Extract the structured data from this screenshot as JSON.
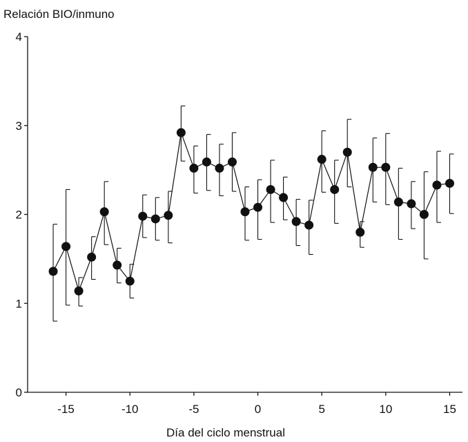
{
  "chart_data": {
    "type": "scatter",
    "title": "",
    "xlabel": "Día del ciclo menstrual",
    "ylabel": "Relación BIO/inmuno",
    "xlim": [
      -18,
      16
    ],
    "ylim": [
      0,
      4
    ],
    "x_ticks": [
      -15,
      -10,
      -5,
      0,
      5,
      10,
      15
    ],
    "y_ticks": [
      0,
      1,
      2,
      3,
      4
    ],
    "grid": false,
    "legend": "none",
    "color": "#111111",
    "series": [
      {
        "connected": true,
        "error_bars": "one-sided whiskers (upper above, lower below, alternating)",
        "points": [
          {
            "x": -16,
            "y": 1.36,
            "lo": 0.8,
            "hi": 1.89
          },
          {
            "x": -15,
            "y": 1.64,
            "lo": 0.98,
            "hi": 2.28
          },
          {
            "x": -14,
            "y": 1.14,
            "lo": 0.97,
            "hi": 1.29
          },
          {
            "x": -13,
            "y": 1.52,
            "lo": 1.27,
            "hi": 1.75
          },
          {
            "x": -12,
            "y": 2.03,
            "lo": 1.66,
            "hi": 2.37
          },
          {
            "x": -11,
            "y": 1.43,
            "lo": 1.23,
            "hi": 1.62
          },
          {
            "x": -10,
            "y": 1.25,
            "lo": 1.06,
            "hi": 1.44
          },
          {
            "x": -9,
            "y": 1.98,
            "lo": 1.74,
            "hi": 2.22
          },
          {
            "x": -8,
            "y": 1.95,
            "lo": 1.71,
            "hi": 2.19
          },
          {
            "x": -7,
            "y": 1.99,
            "lo": 1.68,
            "hi": 2.26
          },
          {
            "x": -6,
            "y": 2.92,
            "lo": 2.6,
            "hi": 3.22
          },
          {
            "x": -5,
            "y": 2.52,
            "lo": 2.24,
            "hi": 2.77
          },
          {
            "x": -4,
            "y": 2.59,
            "lo": 2.27,
            "hi": 2.9
          },
          {
            "x": -3,
            "y": 2.52,
            "lo": 2.21,
            "hi": 2.79
          },
          {
            "x": -2,
            "y": 2.59,
            "lo": 2.26,
            "hi": 2.92
          },
          {
            "x": -1,
            "y": 2.03,
            "lo": 1.71,
            "hi": 2.31
          },
          {
            "x": 0,
            "y": 2.08,
            "lo": 1.72,
            "hi": 2.39
          },
          {
            "x": 1,
            "y": 2.28,
            "lo": 1.91,
            "hi": 2.61
          },
          {
            "x": 2,
            "y": 2.19,
            "lo": 1.94,
            "hi": 2.42
          },
          {
            "x": 3,
            "y": 1.92,
            "lo": 1.65,
            "hi": 2.17
          },
          {
            "x": 4,
            "y": 1.88,
            "lo": 1.55,
            "hi": 2.16
          },
          {
            "x": 5,
            "y": 2.62,
            "lo": 2.25,
            "hi": 2.94
          },
          {
            "x": 6,
            "y": 2.28,
            "lo": 1.9,
            "hi": 2.61
          },
          {
            "x": 7,
            "y": 2.7,
            "lo": 2.31,
            "hi": 3.07
          },
          {
            "x": 8,
            "y": 1.8,
            "lo": 1.63,
            "hi": 1.92
          },
          {
            "x": 9,
            "y": 2.53,
            "lo": 2.14,
            "hi": 2.86
          },
          {
            "x": 10,
            "y": 2.53,
            "lo": 2.11,
            "hi": 2.91
          },
          {
            "x": 11,
            "y": 2.14,
            "lo": 1.72,
            "hi": 2.52
          },
          {
            "x": 12,
            "y": 2.12,
            "lo": 1.84,
            "hi": 2.37
          },
          {
            "x": 13,
            "y": 2.0,
            "lo": 1.5,
            "hi": 2.48
          },
          {
            "x": 14,
            "y": 2.33,
            "lo": 1.91,
            "hi": 2.71
          },
          {
            "x": 15,
            "y": 2.35,
            "lo": 2.01,
            "hi": 2.68
          }
        ]
      }
    ]
  }
}
